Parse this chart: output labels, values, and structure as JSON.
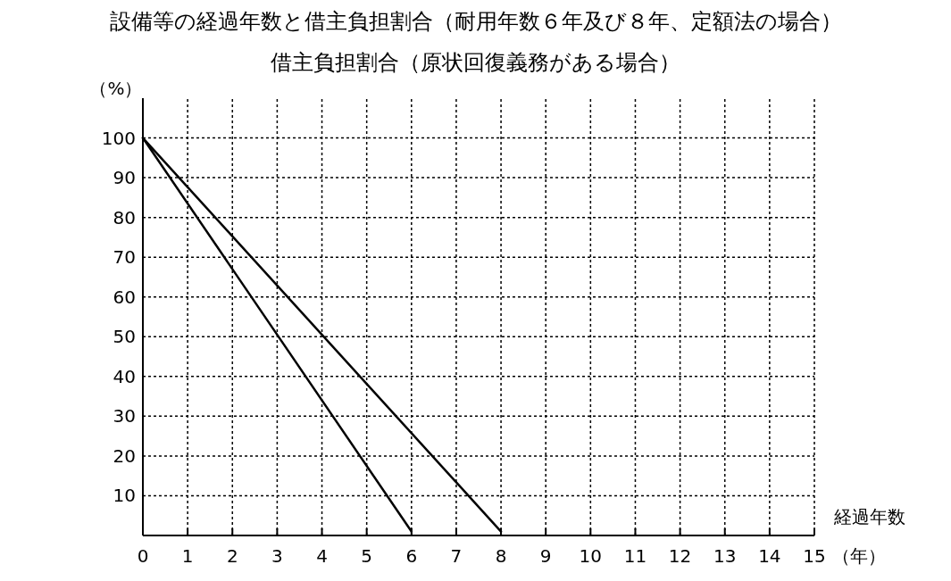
{
  "chart_data": {
    "type": "line",
    "title": "設備等の経過年数と借主負担割合（耐用年数６年及び８年、定額法の場合）",
    "subtitle": "借主負担割合（原状回復義務がある場合）",
    "xlabel": "経過年数",
    "ylabel": "（%）",
    "annotations": [
      "（年）"
    ],
    "series": [
      {
        "color": "#000000",
        "x": [
          0,
          6
        ],
        "values": [
          100,
          1
        ]
      },
      {
        "color": "#000000",
        "x": [
          0,
          8
        ],
        "values": [
          100,
          1
        ]
      }
    ],
    "xlim": [
      0,
      15
    ],
    "xticks": [
      0,
      1,
      2,
      3,
      4,
      5,
      6,
      7,
      8,
      9,
      10,
      11,
      12,
      13,
      14,
      15
    ],
    "ylim": [
      0,
      110
    ],
    "yticks": [
      10,
      20,
      30,
      40,
      50,
      60,
      70,
      80,
      90,
      100
    ],
    "grid": true,
    "line_style": "solid"
  }
}
